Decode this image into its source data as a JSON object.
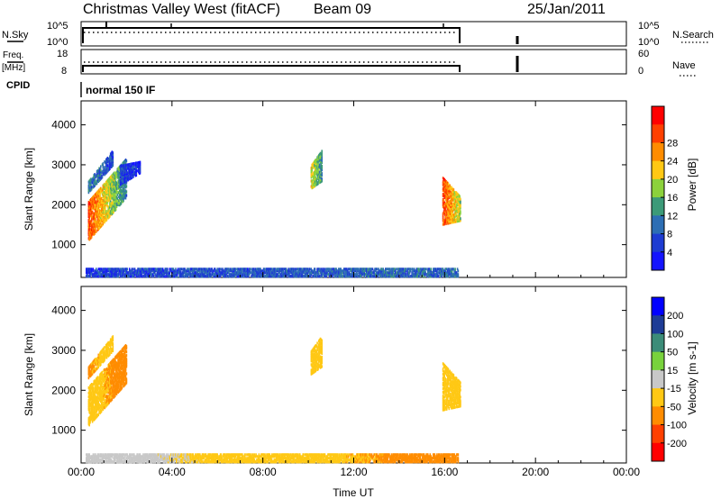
{
  "header": {
    "station": "Christmas Valley West (fitACF)",
    "beam": "Beam 09",
    "date": "25/Jan/2011"
  },
  "strip_panels": {
    "nsky_label": "N.Sky",
    "nsky_ticks": [
      "10^5",
      "10^0"
    ],
    "nsearch_label": "N.Search",
    "nsearch_ticks": [
      "10^5",
      "10^0"
    ],
    "freq_label": "Freq.",
    "freq_unit": "[MHz]",
    "freq_ticks": [
      "18",
      "8"
    ],
    "nave_label": "Nave",
    "nave_ticks": [
      "60",
      "0"
    ],
    "cpid_label": "CPID",
    "cpid_value": "normal 150 IF"
  },
  "chart_data": [
    {
      "type": "heatmap",
      "name": "power-panel",
      "ylabel": "Slant Range [km]",
      "xlim_hours": [
        0,
        24
      ],
      "ylim": [
        180,
        4600
      ],
      "yticks": [
        "1000",
        "2000",
        "3000",
        "4000"
      ],
      "colorbar": {
        "label": "Power [dB]",
        "ticks": [
          "4",
          "8",
          "12",
          "16",
          "20",
          "24",
          "28"
        ],
        "levels": [
          {
            "value": 0,
            "color": "#1414ff"
          },
          {
            "value": 4,
            "color": "#1e3cd2"
          },
          {
            "value": 8,
            "color": "#2d6eb4"
          },
          {
            "value": 12,
            "color": "#3c9a78"
          },
          {
            "value": 16,
            "color": "#8cd23c"
          },
          {
            "value": 20,
            "color": "#ffc814"
          },
          {
            "value": 24,
            "color": "#ff8c00"
          },
          {
            "value": 28,
            "color": "#ff4000"
          },
          {
            "value": 32,
            "color": "#ff0000"
          }
        ]
      },
      "echo_regions": [
        {
          "t0": 0.3,
          "t1": 2.0,
          "r_start": [
            1100,
            2100
          ],
          "r_end": [
            2200,
            3200
          ],
          "v0": 30,
          "v1": 10
        },
        {
          "t0": 0.3,
          "t1": 1.4,
          "r_start": [
            2300,
            2600
          ],
          "r_end": [
            3000,
            3400
          ],
          "v0": 12,
          "v1": 6
        },
        {
          "t0": 1.7,
          "t1": 2.6,
          "r_start": [
            2500,
            3000
          ],
          "r_end": [
            2800,
            3100
          ],
          "v0": 6,
          "v1": 4
        },
        {
          "t0": 10.1,
          "t1": 10.6,
          "r_start": [
            2400,
            3000
          ],
          "r_end": [
            2600,
            3400
          ],
          "v0": 22,
          "v1": 12
        },
        {
          "t0": 15.9,
          "t1": 16.7,
          "r_start": [
            1500,
            2700
          ],
          "r_end": [
            1600,
            2200
          ],
          "v0": 30,
          "v1": 18
        },
        {
          "t0": 0.2,
          "t1": 16.6,
          "r_start": [
            200,
            420
          ],
          "r_end": [
            200,
            420
          ],
          "v0": 6,
          "v1": 10
        }
      ]
    },
    {
      "type": "heatmap",
      "name": "velocity-panel",
      "xlabel": "Time UT",
      "ylabel": "Slant Range [km]",
      "xlim_hours": [
        0,
        24
      ],
      "ylim": [
        180,
        4600
      ],
      "xticks": [
        "00:00",
        "04:00",
        "08:00",
        "12:00",
        "16:00",
        "20:00",
        "00:00"
      ],
      "yticks": [
        "1000",
        "2000",
        "3000",
        "4000"
      ],
      "colorbar": {
        "label": "Velocity [m s-1]",
        "ticks": [
          "200",
          "100",
          "50",
          "15",
          "-15",
          "-50",
          "-100",
          "-200"
        ],
        "levels": [
          {
            "value": 300,
            "color": "#0000ff"
          },
          {
            "value": 200,
            "color": "#1e3c96"
          },
          {
            "value": 100,
            "color": "#3c8c78"
          },
          {
            "value": 50,
            "color": "#78d23c"
          },
          {
            "value": 15,
            "color": "#c8c8c8"
          },
          {
            "value": -15,
            "color": "#ffc814"
          },
          {
            "value": -50,
            "color": "#ff8c00"
          },
          {
            "value": -100,
            "color": "#ff4000"
          },
          {
            "value": -200,
            "color": "#ff0000"
          }
        ]
      },
      "echo_regions": [
        {
          "t0": 0.3,
          "t1": 2.0,
          "r_start": [
            1100,
            2100
          ],
          "r_end": [
            2200,
            3200
          ],
          "v0": 0,
          "v1": -30
        },
        {
          "t0": 0.3,
          "t1": 1.4,
          "r_start": [
            2300,
            2600
          ],
          "r_end": [
            3000,
            3400
          ],
          "v0": -20,
          "v1": 0
        },
        {
          "t0": 10.1,
          "t1": 10.6,
          "r_start": [
            2400,
            3000
          ],
          "r_end": [
            2600,
            3400
          ],
          "v0": 0,
          "v1": 0
        },
        {
          "t0": 15.9,
          "t1": 16.7,
          "r_start": [
            1500,
            2700
          ],
          "r_end": [
            1600,
            2200
          ],
          "v0": 0,
          "v1": 0
        },
        {
          "t0": 0.2,
          "t1": 16.6,
          "r_start": [
            200,
            420
          ],
          "r_end": [
            200,
            420
          ],
          "v0": 30,
          "v1": -30
        }
      ]
    }
  ]
}
